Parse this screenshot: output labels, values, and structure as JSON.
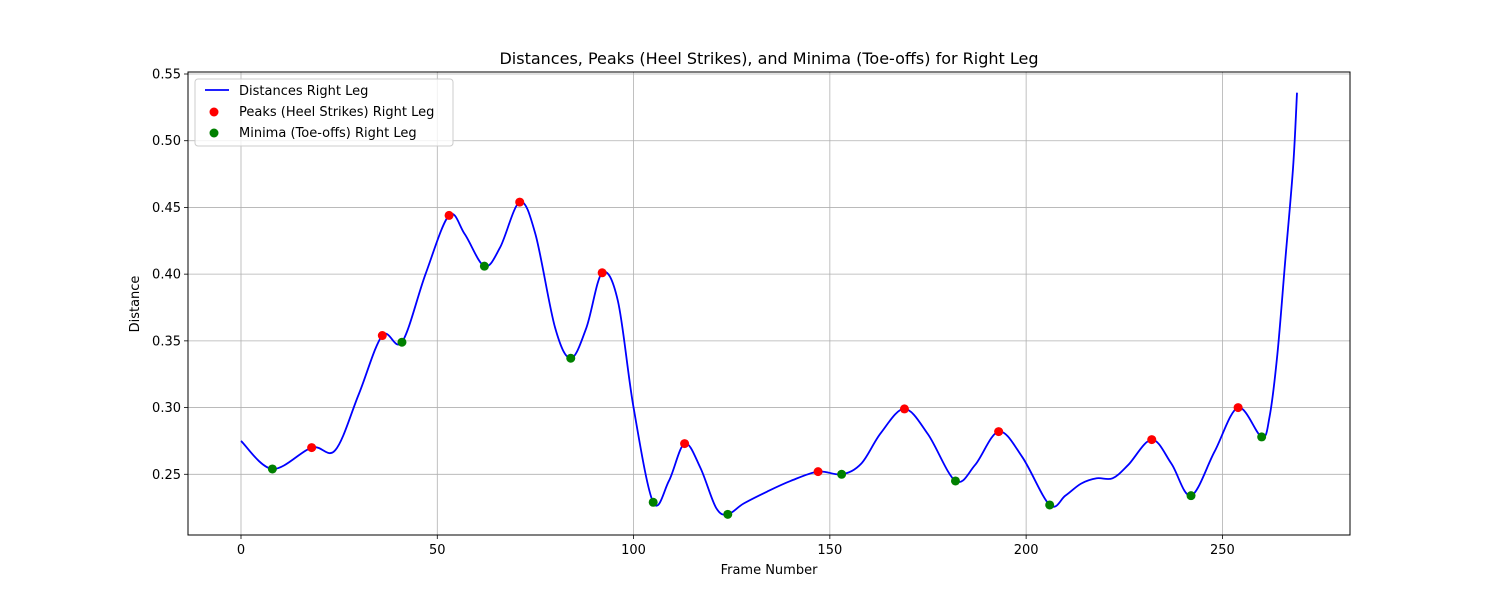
{
  "chart_data": {
    "type": "line",
    "title": "Distances, Peaks (Heel Strikes), and Minima (Toe-offs) for Right Leg",
    "xlabel": "Frame Number",
    "ylabel": "Distance",
    "xlim": [
      -13.5,
      282.5
    ],
    "ylim": [
      0.2045,
      0.5515
    ],
    "xticks": [
      0,
      50,
      100,
      150,
      200,
      250
    ],
    "yticks": [
      0.25,
      0.3,
      0.35,
      0.4,
      0.45,
      0.5,
      0.55
    ],
    "xtick_labels": [
      "0",
      "50",
      "100",
      "150",
      "200",
      "250"
    ],
    "ytick_labels": [
      "0.25",
      "0.30",
      "0.35",
      "0.40",
      "0.45",
      "0.50",
      "0.55"
    ],
    "grid": true,
    "legend_position": "top-left",
    "series": [
      {
        "name": "Distances Right Leg",
        "kind": "line",
        "color": "#0000ff",
        "x": [
          0,
          8,
          18,
          24,
          30,
          36,
          41,
          47,
          53,
          57,
          62,
          66,
          71,
          75,
          80,
          84,
          88,
          92,
          96,
          100,
          105,
          109,
          113,
          117,
          121,
          124,
          128,
          134,
          140,
          147,
          153,
          158,
          163,
          169,
          175,
          182,
          187,
          193,
          199,
          206,
          210,
          214,
          218,
          222,
          226,
          232,
          237,
          242,
          248,
          254,
          260,
          262,
          264,
          266,
          268,
          269
        ],
        "y": [
          0.275,
          0.254,
          0.27,
          0.268,
          0.31,
          0.354,
          0.349,
          0.4,
          0.444,
          0.43,
          0.406,
          0.42,
          0.454,
          0.43,
          0.36,
          0.337,
          0.36,
          0.401,
          0.38,
          0.3,
          0.229,
          0.245,
          0.273,
          0.255,
          0.225,
          0.22,
          0.228,
          0.237,
          0.245,
          0.252,
          0.25,
          0.258,
          0.281,
          0.299,
          0.28,
          0.245,
          0.257,
          0.282,
          0.263,
          0.227,
          0.234,
          0.243,
          0.247,
          0.247,
          0.257,
          0.276,
          0.258,
          0.234,
          0.267,
          0.3,
          0.278,
          0.293,
          0.34,
          0.41,
          0.48,
          0.536
        ]
      },
      {
        "name": "Peaks (Heel Strikes) Right Leg",
        "kind": "scatter",
        "color": "#ff0000",
        "x": [
          18,
          36,
          53,
          71,
          92,
          113,
          147,
          169,
          193,
          232,
          254
        ],
        "y": [
          0.27,
          0.354,
          0.444,
          0.454,
          0.401,
          0.273,
          0.252,
          0.299,
          0.282,
          0.276,
          0.3
        ]
      },
      {
        "name": "Minima (Toe-offs) Right Leg",
        "kind": "scatter",
        "color": "#008000",
        "x": [
          8,
          41,
          62,
          84,
          105,
          124,
          153,
          182,
          206,
          242,
          260
        ],
        "y": [
          0.254,
          0.349,
          0.406,
          0.337,
          0.229,
          0.22,
          0.25,
          0.245,
          0.227,
          0.234,
          0.278
        ]
      }
    ]
  }
}
